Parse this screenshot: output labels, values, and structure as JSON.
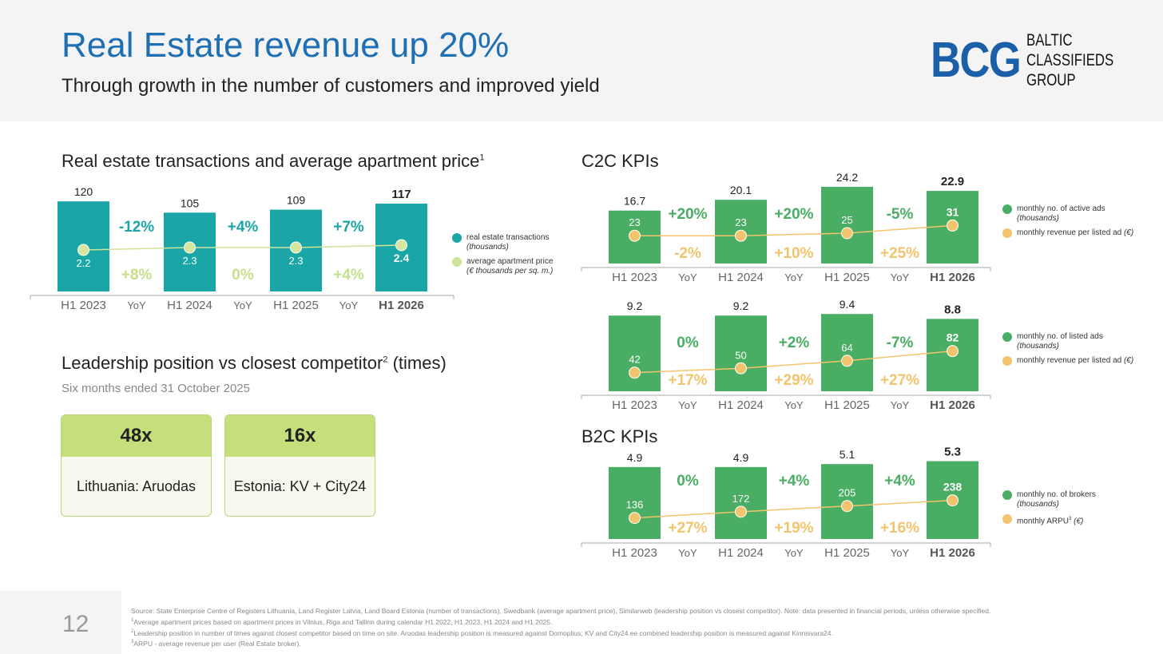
{
  "header": {
    "title": "Real Estate revenue up 20%",
    "subtitle": "Through growth in the number of customers and improved yield",
    "logo": {
      "mark": "BCG",
      "text": [
        "BALTIC",
        "CLASSIFIEDS",
        "GROUP"
      ]
    }
  },
  "sections": {
    "transactions_title": "Real estate transactions and average apartment price",
    "transactions_sup": "1",
    "c2c_title": "C2C KPIs",
    "b2c_title": "B2C KPIs",
    "leadership_title": "Leadership position vs closest competitor",
    "leadership_sup": "2",
    "leadership_suffix": " (times)",
    "leadership_subtitle": "Six months ended 31 October 2025"
  },
  "leadership_cards": [
    {
      "value": "48x",
      "label": "Lithuania: Aruodas"
    },
    {
      "value": "16x",
      "label": "Estonia: KV + City24"
    }
  ],
  "colors": {
    "teal": "#1aa6a6",
    "lightgreen": "#cfe39a",
    "green": "#4aad64",
    "orange": "#f2c46d",
    "blue": "#1f6fb5"
  },
  "chart_data": [
    {
      "type": "bar+line",
      "name": "transactions",
      "categories": [
        "H1 2023",
        "YoY",
        "H1 2024",
        "YoY",
        "H1 2025",
        "YoY",
        "H1 2026"
      ],
      "bars": {
        "name": "real estate transactions",
        "unit": "(thousands)",
        "values": [
          120,
          105,
          109,
          117
        ],
        "labels": [
          "120",
          "105",
          "109",
          "117"
        ]
      },
      "line": {
        "name": "average apartment price",
        "unit": "(€ thousands per sq. m.)",
        "values": [
          2.2,
          2.3,
          2.3,
          2.4
        ],
        "labels": [
          "2.2",
          "2.3",
          "2.3",
          "2.4"
        ]
      },
      "yoy_bars": [
        "-12%",
        "+4%",
        "+7%"
      ],
      "yoy_line": [
        "+8%",
        "0%",
        "+4%"
      ]
    },
    {
      "type": "bar+line",
      "name": "c2c_active_ads",
      "categories": [
        "H1 2023",
        "YoY",
        "H1 2024",
        "YoY",
        "H1 2025",
        "YoY",
        "H1 2026"
      ],
      "bars": {
        "name": "monthly no. of active ads",
        "unit": "(thousands)",
        "values": [
          16.7,
          20.1,
          24.2,
          22.9
        ],
        "labels": [
          "16.7",
          "20.1",
          "24.2",
          "22.9"
        ]
      },
      "line": {
        "name": "monthly revenue per listed ad",
        "unit": "(€)",
        "values": [
          23,
          23,
          25,
          31
        ],
        "labels": [
          "23",
          "23",
          "25",
          "31"
        ]
      },
      "yoy_bars": [
        "+20%",
        "+20%",
        "-5%"
      ],
      "yoy_line": [
        "-2%",
        "+10%",
        "+25%"
      ]
    },
    {
      "type": "bar+line",
      "name": "c2c_listed_ads",
      "categories": [
        "H1 2023",
        "YoY",
        "H1 2024",
        "YoY",
        "H1 2025",
        "YoY",
        "H1 2026"
      ],
      "bars": {
        "name": "monthly no. of listed ads",
        "unit": "(thousands)",
        "values": [
          9.2,
          9.2,
          9.4,
          8.8
        ],
        "labels": [
          "9.2",
          "9.2",
          "9.4",
          "8.8"
        ]
      },
      "line": {
        "name": "monthly revenue per listed ad",
        "unit": "(€)",
        "values": [
          42,
          50,
          64,
          82
        ],
        "labels": [
          "42",
          "50",
          "64",
          "82"
        ]
      },
      "yoy_bars": [
        "0%",
        "+2%",
        "-7%"
      ],
      "yoy_line": [
        "+17%",
        "+29%",
        "+27%"
      ]
    },
    {
      "type": "bar+line",
      "name": "b2c_brokers",
      "categories": [
        "H1 2023",
        "YoY",
        "H1 2024",
        "YoY",
        "H1 2025",
        "YoY",
        "H1 2026"
      ],
      "bars": {
        "name": "monthly no. of brokers",
        "unit": "(thousands)",
        "values": [
          4.9,
          4.9,
          5.1,
          5.3
        ],
        "labels": [
          "4.9",
          "4.9",
          "5.1",
          "5.3"
        ]
      },
      "line": {
        "name": "monthly ARPU",
        "sup": "3",
        "unit": "(€)",
        "values": [
          136,
          172,
          205,
          238
        ],
        "labels": [
          "136",
          "172",
          "205",
          "238"
        ]
      },
      "yoy_bars": [
        "0%",
        "+4%",
        "+4%"
      ],
      "yoy_line": [
        "+27%",
        "+19%",
        "+16%"
      ]
    }
  ],
  "footer": {
    "page": "12",
    "notes": [
      {
        "sup": "",
        "text": "Source: State Enterprise Centre of Registers Lithuania, Land Register Latvia, Land Board Estonia (number of transactions), Swedbank (average apartment price), Similarweb (leadership position vs closest competitor). Note: data presented in financial periods, unless otherwise specified."
      },
      {
        "sup": "1",
        "text": "Average apartment prices based on apartment prices in Vilnius, Riga and Tallinn during calendar H1 2022, H1 2023, H1 2024 and H1 2025."
      },
      {
        "sup": "2",
        "text": "Leadership position in number of times against closest competitor based on time on site. Aruodas leadership position is measured against Domoplius; KV and City24.ee combined leadership position is measured against Kinnisvara24."
      },
      {
        "sup": "3",
        "text": "ARPU - average revenue per user (Real Estate broker)."
      }
    ]
  }
}
